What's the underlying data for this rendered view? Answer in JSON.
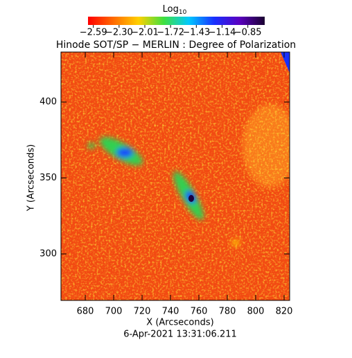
{
  "chart_data": {
    "type": "heatmap",
    "title": "Hinode SOT/SP − MERLIN : Degree of Polarization",
    "xlabel": "X (Arcseconds)",
    "ylabel": "Y (Arcseconds)",
    "footer": "6-Apr-2021 13:31:06.211",
    "xlim": [
      662.9,
      823.9
    ],
    "xticks": [
      680,
      700,
      720,
      740,
      760,
      780,
      800,
      820
    ],
    "ylim": [
      269.4,
      432.9
    ],
    "yticks": [
      300,
      350,
      400
    ],
    "colorbar": {
      "label": "Log",
      "label_subscript": "10",
      "lim": [
        -2.65,
        -0.66
      ],
      "colors": [
        "#ff0000",
        "#ff6a00",
        "#ffd000",
        "#3fe03f",
        "#00c8ff",
        "#1830ff",
        "#5a00c0",
        "#1a0030"
      ],
      "ticks": [
        {
          "value": -2.59,
          "label": "−2.59"
        },
        {
          "value": -2.3,
          "label": "−2.30"
        },
        {
          "value": -2.01,
          "label": "−2.01"
        },
        {
          "value": -1.72,
          "label": "−1.72"
        },
        {
          "value": -1.43,
          "label": "−1.43"
        },
        {
          "value": -1.14,
          "label": "−1.14"
        },
        {
          "value": -0.85,
          "label": "−0.85"
        }
      ]
    }
  }
}
